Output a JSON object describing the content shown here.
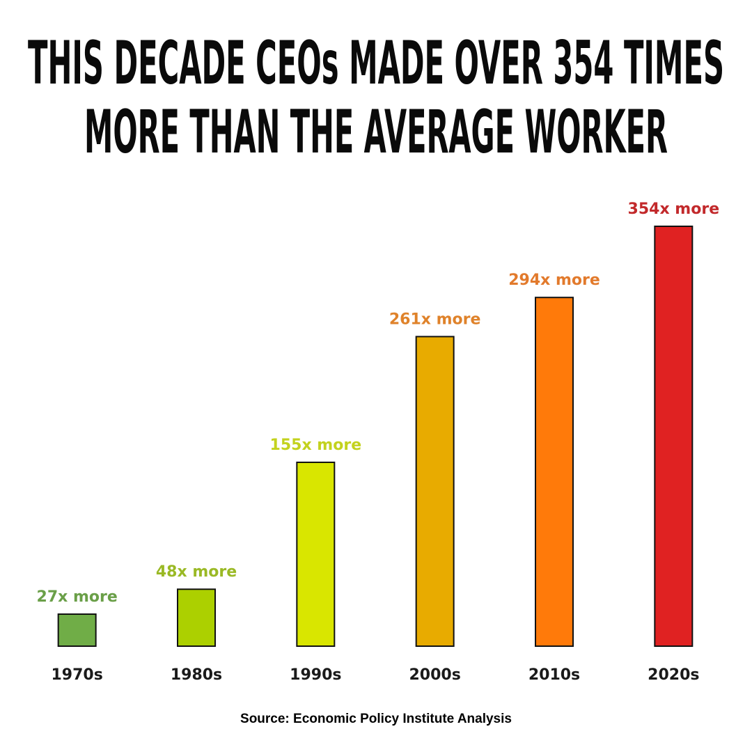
{
  "chart_data": {
    "type": "bar",
    "title": [
      "THIS DECADE CEOs MADE OVER 354 TIMES",
      "MORE THAN THE AVERAGE WORKER"
    ],
    "categories": [
      "1970s",
      "1980s",
      "1990s",
      "2000s",
      "2010s",
      "2020s"
    ],
    "values": [
      27,
      48,
      155,
      261,
      294,
      354
    ],
    "value_labels": [
      "27x more",
      "48x more",
      "155x more",
      "261x more",
      "294x more",
      "354x more"
    ],
    "colors": [
      "#70ad47",
      "#acd000",
      "#d9e600",
      "#e8ab00",
      "#ff7a0a",
      "#e02222"
    ],
    "label_colors": [
      "#6a9f48",
      "#9ab925",
      "#c3d21e",
      "#df822a",
      "#e27a2c",
      "#c2292b"
    ],
    "ylim": [
      0,
      354
    ],
    "source": "Source: Economic Policy Institute Analysis"
  }
}
